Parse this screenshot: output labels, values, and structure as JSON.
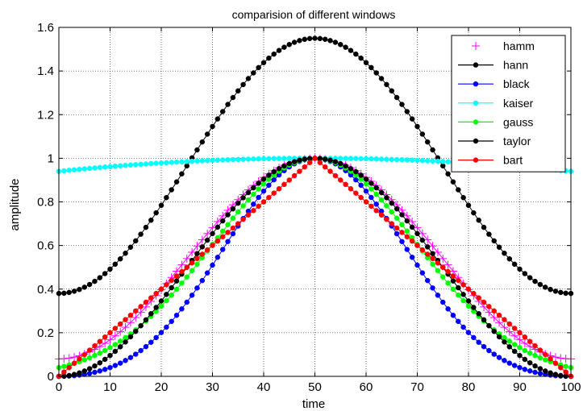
{
  "chart_data": {
    "type": "line",
    "title": "comparision of different windows",
    "xlabel": "time",
    "ylabel": "amplitude",
    "xlim": [
      0,
      100
    ],
    "ylim": [
      0,
      1.6
    ],
    "xticks": [
      "0",
      "10",
      "20",
      "30",
      "40",
      "50",
      "60",
      "70",
      "80",
      "90",
      "100"
    ],
    "yticks": [
      "0",
      "0.2",
      "0.4",
      "0.6",
      "0.8",
      "1",
      "1.2",
      "1.4",
      "1.6"
    ],
    "grid": true,
    "legend_position": "top-right",
    "n_points": 101,
    "series": [
      {
        "name": "hamm",
        "color": "#ff00ff",
        "marker": "plus",
        "peak": 1.0,
        "floor": 0.08,
        "shape": "hamming"
      },
      {
        "name": "hann",
        "color": "#000000",
        "marker": "dot",
        "peak": 1.55,
        "floor": 0.38,
        "shape": "hamming-scaled"
      },
      {
        "name": "black",
        "color": "#0000ff",
        "marker": "dot",
        "peak": 1.0,
        "floor": 0.0,
        "shape": "blackman"
      },
      {
        "name": "kaiser",
        "color": "#00ffff",
        "marker": "dot",
        "peak": 1.0,
        "floor": 0.94,
        "shape": "kaiser"
      },
      {
        "name": "gauss",
        "color": "#00ff00",
        "marker": "dot",
        "peak": 1.0,
        "floor": 0.04,
        "shape": "gauss"
      },
      {
        "name": "taylor",
        "color": "#000000",
        "marker": "dot",
        "peak": 1.0,
        "floor": 0.0,
        "shape": "hann"
      },
      {
        "name": "bart",
        "color": "#ff0000",
        "marker": "dot",
        "peak": 1.0,
        "floor": 0.0,
        "shape": "bartlett"
      }
    ]
  }
}
